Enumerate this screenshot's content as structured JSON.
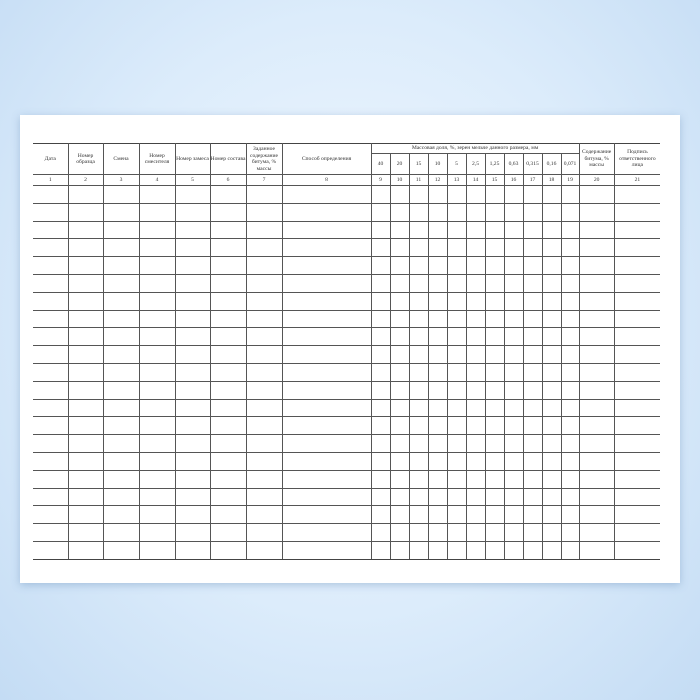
{
  "columns": {
    "date": "Дата",
    "sample_no": "Номер образца",
    "shift": "Смена",
    "mixer_no": "Номер смесителя",
    "batch_no": "Номер замеса",
    "composition_no": "Номер состава",
    "target_bitumen": "Заданное содержание битума, % массы",
    "method": "Способ определения",
    "mass_fraction_group": "Массовая доля, %, зерен мельче данного размера, мм",
    "sizes": [
      "40",
      "20",
      "15",
      "10",
      "5",
      "2,5",
      "1,25",
      "0,63",
      "0,315",
      "0,16",
      "0,071"
    ],
    "bitumen_content": "Содержание битума, % массы",
    "signature": "Подпись ответственного лица"
  },
  "column_numbers": [
    "1",
    "2",
    "3",
    "4",
    "5",
    "6",
    "7",
    "8",
    "9",
    "10",
    "11",
    "12",
    "13",
    "14",
    "15",
    "16",
    "17",
    "18",
    "19",
    "20",
    "21"
  ],
  "empty_rows": 21
}
